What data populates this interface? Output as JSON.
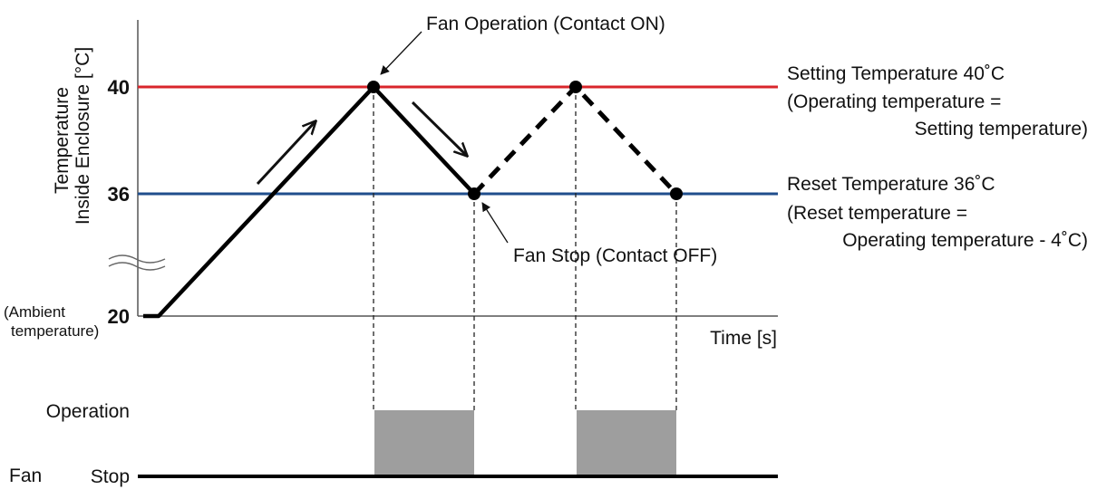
{
  "y_axis": {
    "label_line1": "Temperature",
    "label_line2": "Inside Enclosure [°C]",
    "ticks": [
      "40",
      "36",
      "20"
    ],
    "ambient_line1": "(Ambient",
    "ambient_line2": "temperature)"
  },
  "x_axis": {
    "label": "Time [s]"
  },
  "annotations": {
    "fan_operation": "Fan Operation (Contact ON)",
    "fan_stop": "Fan Stop (Contact OFF)"
  },
  "setting": {
    "line1": "Setting Temperature 40˚C",
    "line2": "(Operating temperature =",
    "line3": "Setting temperature)"
  },
  "reset": {
    "line1": "Reset Temperature 36˚C",
    "line2": "(Reset temperature =",
    "line3": "Operating temperature - 4˚C)"
  },
  "fan_chart": {
    "title": "Fan",
    "operation_label": "Operation",
    "stop_label": "Stop"
  },
  "colors": {
    "setting_line": "#d9262b",
    "reset_line": "#1f4e8c",
    "operation_block": "#9e9e9e",
    "curve": "#000000"
  },
  "icons": [
    "arrow-up-right-icon",
    "arrow-down-right-icon",
    "axis-break-icon"
  ]
}
